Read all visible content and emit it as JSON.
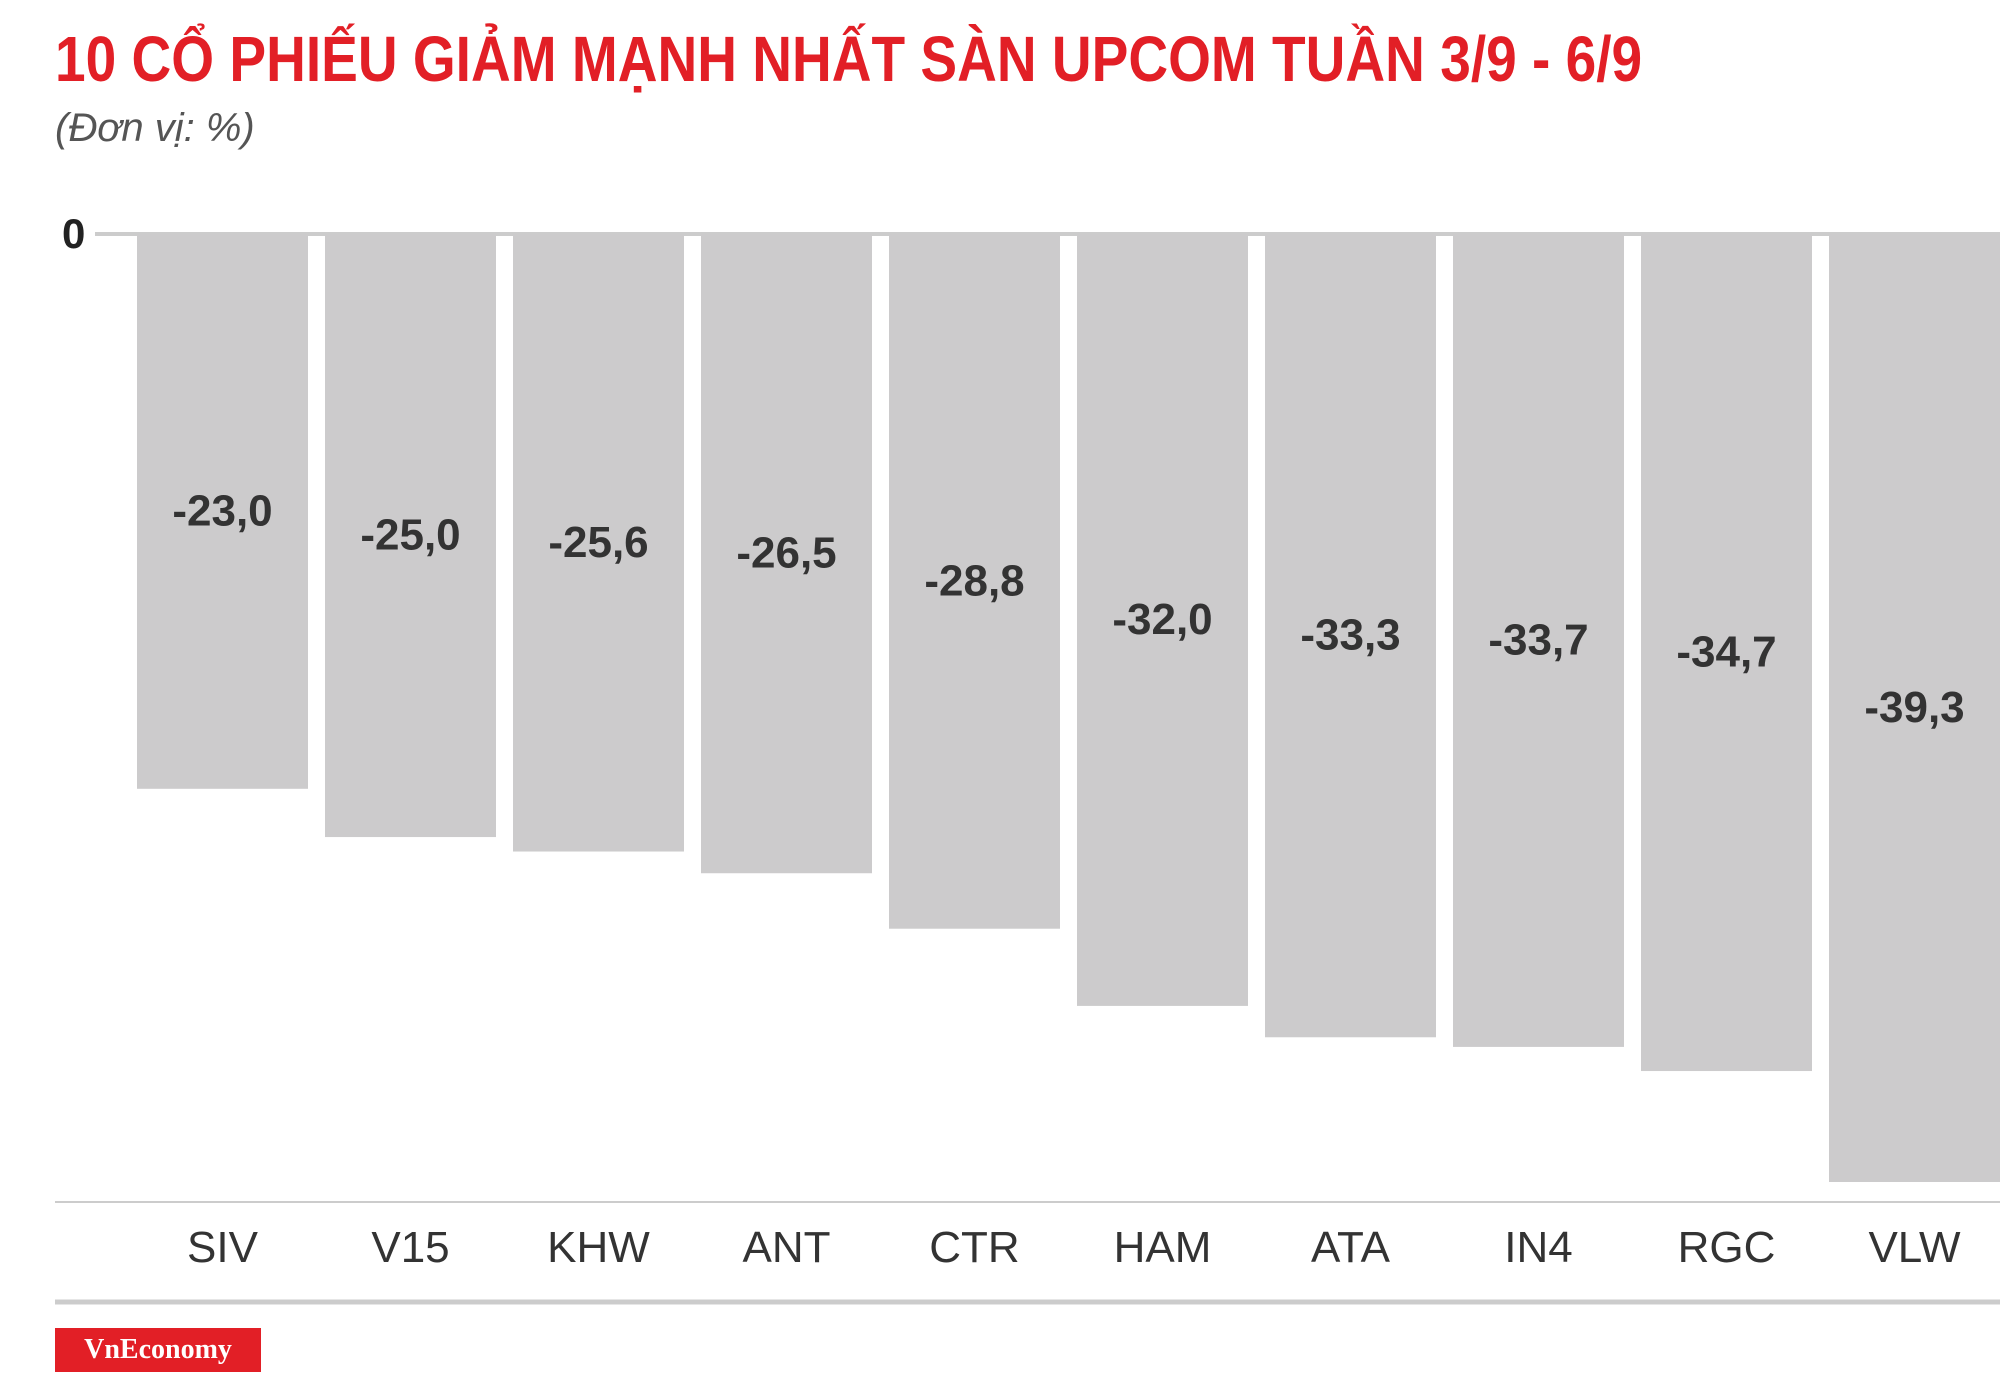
{
  "title": "10 CỔ PHIẾU GIẢM MẠNH NHẤT SÀN UPCOM TUẦN 3/9 - 6/9",
  "subtitle": "(Đơn vị: %)",
  "brand": "VnEconomy",
  "colors": {
    "title": "#e21f26",
    "bar": "#cccbcc",
    "label": "#333333",
    "axis": "#cccccc",
    "brand_bg": "#e21f26"
  },
  "chart_data": {
    "type": "bar",
    "categories": [
      "SIV",
      "V15",
      "KHW",
      "ANT",
      "CTR",
      "HAM",
      "ATA",
      "IN4",
      "RGC",
      "VLW"
    ],
    "values": [
      -23.0,
      -25.0,
      -25.6,
      -26.5,
      -28.8,
      -32.0,
      -33.3,
      -33.7,
      -34.7,
      -39.3
    ],
    "value_labels": [
      "-23,0",
      "-25,0",
      "-25,6",
      "-26,5",
      "-28,8",
      "-32,0",
      "-33,3",
      "-33,7",
      "-34,7",
      "-39,3"
    ],
    "zero_label": "0",
    "ylim": [
      -39.3,
      0
    ],
    "grid": false,
    "legend": "none"
  }
}
